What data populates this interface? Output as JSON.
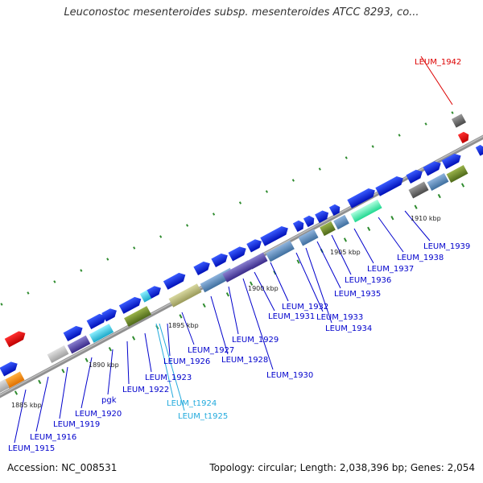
{
  "title": "Leuconostoc mesenteroides subsp. mesenteroides ATCC 8293, co...",
  "footer": {
    "accession": "Accession: NC_008531",
    "summary": "Topology: circular; Length: 2,038,396 bp; Genes: 2,054"
  },
  "colors": {
    "backbone": "#8a8a8a",
    "tick": "#2e8b2e",
    "label_blue": "#0000cc",
    "label_red": "#dd0000",
    "label_cyan": "#22aadd"
  },
  "scale_labels": [
    "1885 kbp",
    "1890 kbp",
    "1895 kbp",
    "1900 kbp",
    "1905 kbp",
    "1910 kbp"
  ],
  "gene_labels": [
    {
      "text": "LEUM_1942",
      "color": "red"
    },
    {
      "text": "LEUM_1939",
      "color": "blue"
    },
    {
      "text": "LEUM_1938",
      "color": "blue"
    },
    {
      "text": "LEUM_1937",
      "color": "blue"
    },
    {
      "text": "LEUM_1936",
      "color": "blue"
    },
    {
      "text": "LEUM_1935",
      "color": "blue"
    },
    {
      "text": "LEUM_1934",
      "color": "blue"
    },
    {
      "text": "LEUM_1933",
      "color": "blue"
    },
    {
      "text": "LEUM_1932",
      "color": "blue"
    },
    {
      "text": "LEUM_1931",
      "color": "blue"
    },
    {
      "text": "LEUM_1930",
      "color": "blue"
    },
    {
      "text": "LEUM_1929",
      "color": "blue"
    },
    {
      "text": "LEUM_1928",
      "color": "blue"
    },
    {
      "text": "LEUM_1927",
      "color": "blue"
    },
    {
      "text": "LEUM_1926",
      "color": "blue"
    },
    {
      "text": "LEUM_1923",
      "color": "blue"
    },
    {
      "text": "LEUM_1922",
      "color": "blue"
    },
    {
      "text": "pgk",
      "color": "blue"
    },
    {
      "text": "LEUM_1920",
      "color": "blue"
    },
    {
      "text": "LEUM_1919",
      "color": "blue"
    },
    {
      "text": "LEUM_1916",
      "color": "blue"
    },
    {
      "text": "LEUM_1915",
      "color": "blue"
    },
    {
      "text": "LEUM_t1924",
      "color": "cyan"
    },
    {
      "text": "LEUM_t1925",
      "color": "cyan"
    }
  ]
}
